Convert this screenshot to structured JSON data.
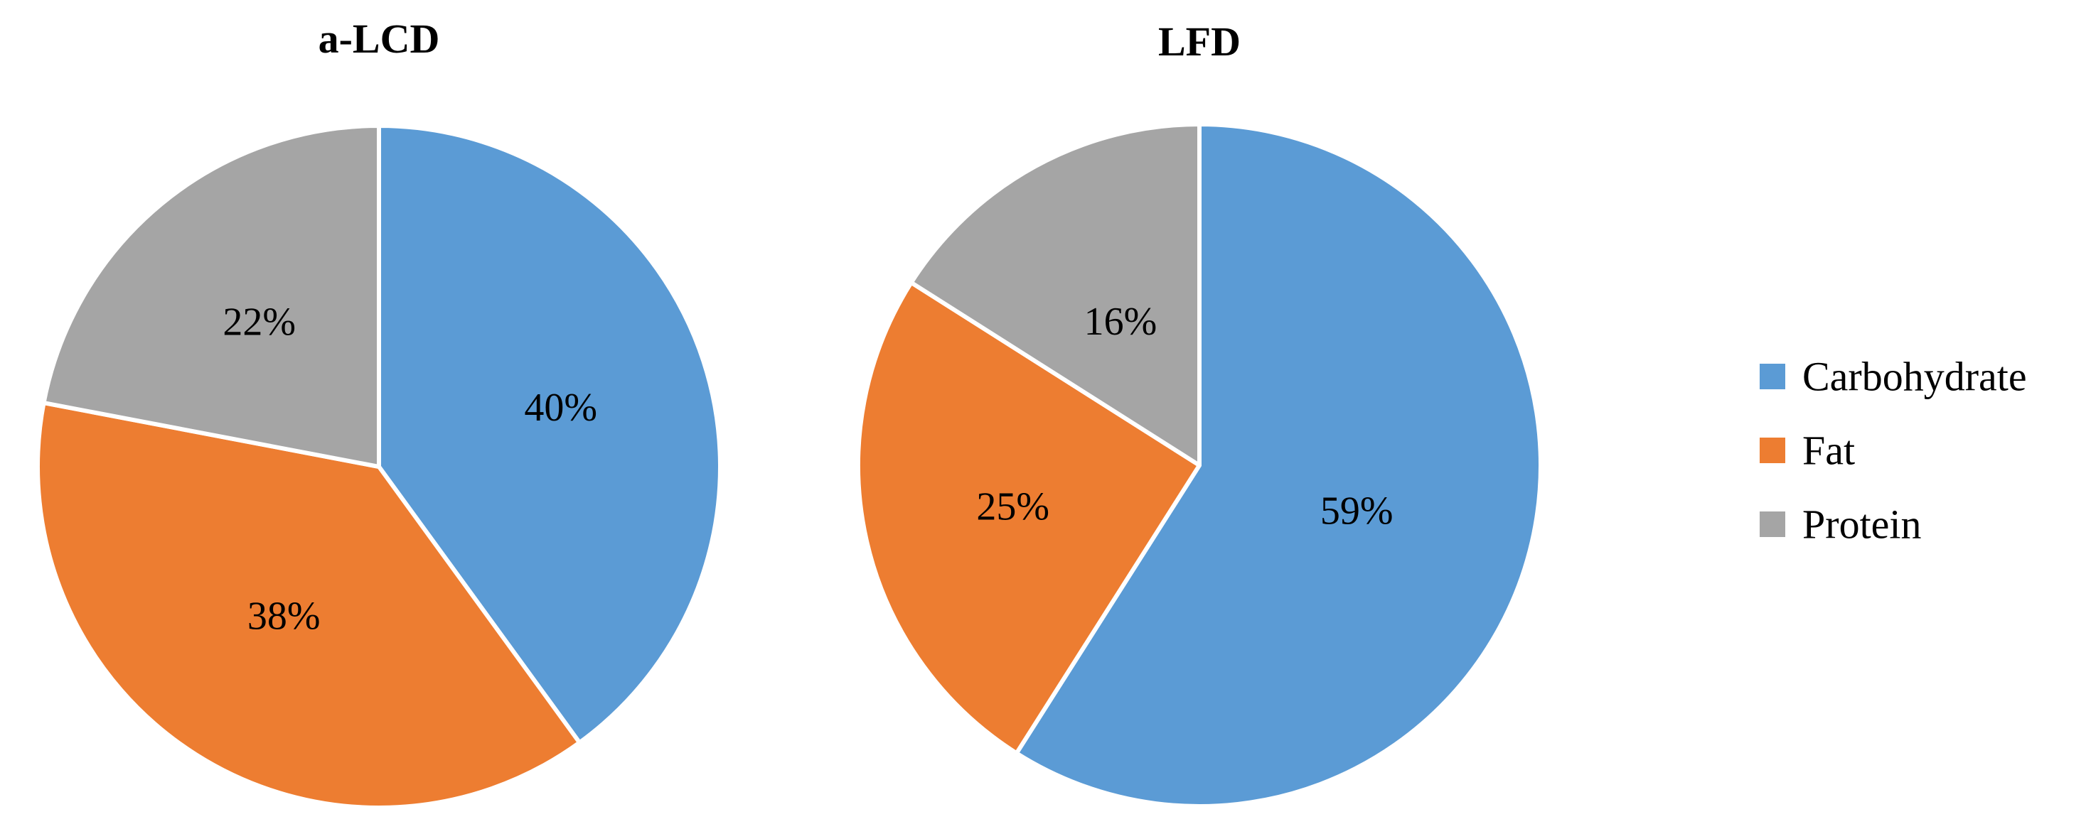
{
  "chart_data": [
    {
      "type": "pie",
      "title": "a-LCD",
      "categories": [
        "Carbohydrate",
        "Fat",
        "Protein"
      ],
      "values": [
        40,
        38,
        22
      ],
      "labels": [
        "40%",
        "38%",
        "22%"
      ],
      "colors": [
        "#5B9BD5",
        "#ED7D31",
        "#A5A5A5"
      ],
      "start_angle": "12 o'clock",
      "direction": "clockwise"
    },
    {
      "type": "pie",
      "title": "LFD",
      "categories": [
        "Carbohydrate",
        "Fat",
        "Protein"
      ],
      "values": [
        59,
        25,
        16
      ],
      "labels": [
        "59%",
        "25%",
        "16%"
      ],
      "colors": [
        "#5B9BD5",
        "#ED7D31",
        "#A5A5A5"
      ],
      "start_angle": "12 o'clock",
      "direction": "clockwise"
    }
  ],
  "legend": {
    "placement": "right",
    "items": [
      {
        "label": "Carbohydrate",
        "color": "#5B9BD5"
      },
      {
        "label": "Fat",
        "color": "#ED7D31"
      },
      {
        "label": "Protein",
        "color": "#A5A5A5"
      }
    ]
  }
}
